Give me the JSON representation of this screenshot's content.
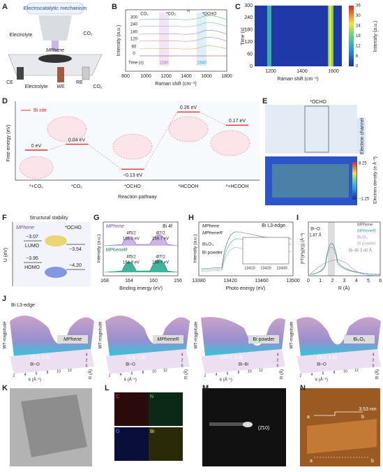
{
  "A": {
    "label": "A",
    "title": "Electrocatalytic mechanism",
    "electrolyte_top": "Electrolyte",
    "co2_top": "CO₂",
    "sample": "MPhene",
    "ce": "CE",
    "electrolyte_bottom": "Electrolyte",
    "we": "WE",
    "re": "RE",
    "co2_bottom": "CO₂"
  },
  "B": {
    "label": "B",
    "ylabel": "Intensity (a.u.)",
    "xlabel": "Raman shift (cm⁻¹)",
    "xticks": [
      "800",
      "1000",
      "1200",
      "1400",
      "1600",
      "1800"
    ],
    "time_labels": [
      "300",
      "240",
      "180",
      "120",
      "60",
      "0"
    ],
    "time_title": "Time (s)",
    "peaks": [
      "1180",
      "1540"
    ],
    "species": [
      "CO₂",
      "*CO₂",
      "*OCHO"
    ],
    "h_label": "H"
  },
  "C": {
    "label": "C",
    "ylabel": "Time (s)",
    "xlabel": "Raman shift (cm⁻¹)",
    "yticks": [
      "0",
      "60",
      "120",
      "180",
      "240",
      "300"
    ],
    "xticks": [
      "1200",
      "1400",
      "1600"
    ],
    "colorbar_ticks": [
      "36",
      "30",
      "24",
      "18",
      "12",
      "6",
      "0"
    ],
    "colorbar_label": "Intensity (a.u.)"
  },
  "D": {
    "label": "D",
    "ylabel": "Free energy (eV)",
    "xlabel": "Reaction pathway",
    "legend": "Bi site",
    "categories": [
      "*+CO₂",
      "*CO₂",
      "*OCHO",
      "*HCOOH",
      "*+HCOOH"
    ],
    "values": [
      0,
      0.04,
      -0.13,
      0.26,
      0.17
    ],
    "value_labels": [
      "0 eV",
      "0.04 eV",
      "−0.13 eV",
      "0.26 eV",
      "0.17 eV"
    ]
  },
  "E": {
    "label": "E",
    "adsorbate": "*OCHO",
    "channel": "Electron channel",
    "colorbar_ticks": [
      "8.25",
      "−1.25"
    ],
    "colorbar_label": "Electron density (e Å⁻³)"
  },
  "F": {
    "label": "F",
    "title": "Structural stability",
    "ylabel": "U (eV)",
    "sample": "MPhene",
    "adsorbate": "*OCHO",
    "lumo": "LUMO",
    "homo": "HOMO",
    "lumo_left": "−3.07",
    "lumo_right": "−3.54",
    "homo_left": "−3.95",
    "homo_right": "−4.20"
  },
  "G": {
    "label": "G",
    "edge": "Bi 4f",
    "ylabel": "Intensity (a.u.)",
    "xlabel": "Binding energy (eV)",
    "xticks": [
      "168",
      "164",
      "160",
      "156"
    ],
    "top": {
      "sample": "MPhene",
      "p1": "4f5/2",
      "e1": "165.0 eV",
      "p2": "4f7/2",
      "e2": "159.7 eV"
    },
    "bottom": {
      "sample": "MPheneR",
      "p1": "4f5/2",
      "e1": "164.9 eV",
      "p2": "4f7/2",
      "e2": "159.7 eV"
    }
  },
  "H": {
    "label": "H",
    "edge": "Bi L3-edge",
    "ylabel": "Intensity (a.u.)",
    "xlabel": "Photo energy (eV)",
    "xticks": [
      "13380",
      "13420",
      "13460",
      "13500"
    ],
    "inset_ticks": [
      "13410",
      "13420",
      "13430"
    ],
    "samples": [
      "MPhene",
      "MPheneR",
      "Bi₂O₃",
      "Bi powder"
    ]
  },
  "I": {
    "label": "I",
    "ylabel": "|FT(k²χ(k))| (Å⁻³)",
    "xlabel": "R (Å)",
    "xticks": [
      "0",
      "1",
      "2",
      "3",
      "4",
      "5",
      "6"
    ],
    "bio": "Bi−O",
    "bio_dist": "1.87 Å",
    "bibi": "Bi−Bi 3.40 Å",
    "legend": [
      "MPhene",
      "MPheneR",
      "Bi₂O₃",
      "Bi powder"
    ]
  },
  "J": {
    "label": "J",
    "edge": "Bi L3-edge",
    "zlabel": "WT-magnitude",
    "k_label": "k (Å⁻¹)",
    "r_label": "R (Å)",
    "k_ticks": [
      "2",
      "4",
      "6",
      "8",
      "10",
      "12"
    ],
    "r_ticks": [
      "0",
      "2",
      "4"
    ],
    "plots": [
      {
        "name": "MPhene",
        "peak": "(3.3, 1.9)",
        "bond": "Bi−O"
      },
      {
        "name": "MPheneR",
        "peak": "(3.3, 1.8)",
        "bond": "Bi−O"
      },
      {
        "name": "Bi powder",
        "peak": "(10.7, 3.4)",
        "bond": "Bi−Bi"
      },
      {
        "name": "Bi₂O₃",
        "peak": "(3.2, 1.8)",
        "bond": "Bi−O"
      }
    ]
  },
  "K": {
    "label": "K"
  },
  "L": {
    "label": "L",
    "maps": [
      "C",
      "N",
      "O",
      "Bi"
    ]
  },
  "M": {
    "label": "M",
    "spot": "(2̄10)"
  },
  "N": {
    "label": "N",
    "height": "3.53 nm",
    "a1": "a",
    "b1": "b",
    "a2": "a",
    "b2": "b"
  }
}
